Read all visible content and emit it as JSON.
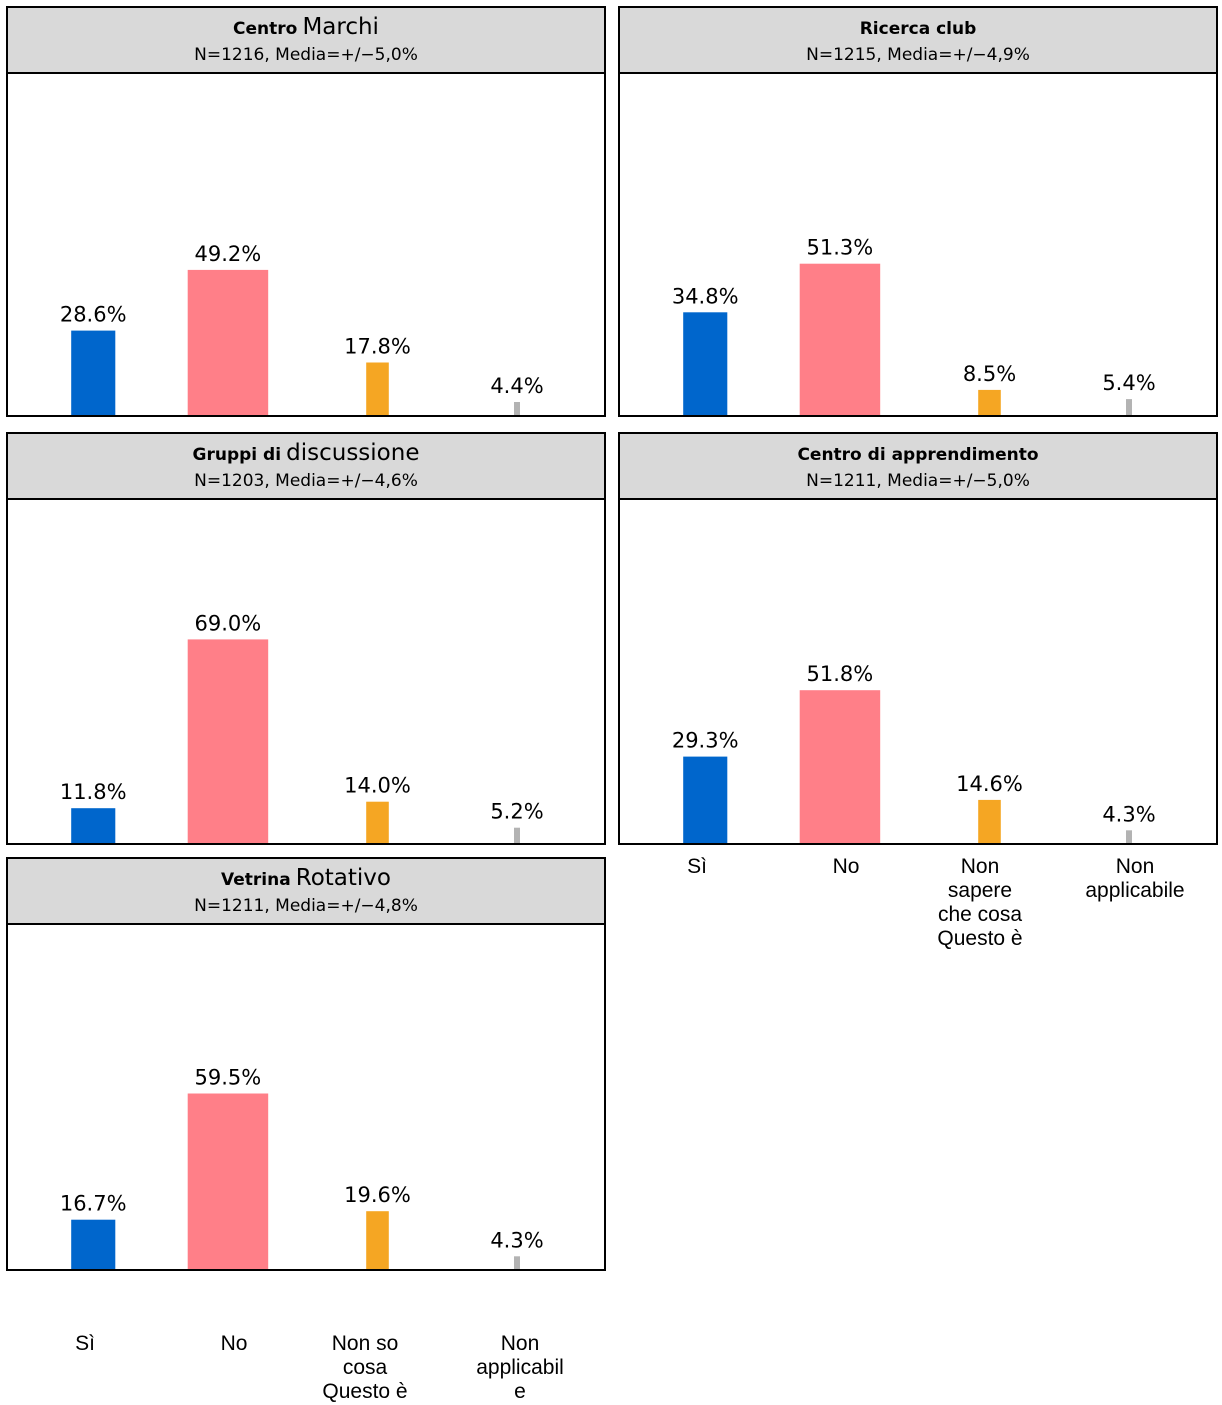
{
  "chart_data": [
    {
      "type": "bar",
      "title_bold": "Centro",
      "title_rest": "Marchi",
      "subtitle": "N=1216, Media=+/−5,0%",
      "categories": [
        "Sì",
        "No",
        "Non so cosa Questo è",
        "Non applicabile"
      ],
      "values": [
        28.6,
        49.2,
        17.8,
        4.4
      ],
      "data_labels": [
        "28.6%",
        "49.2%",
        "17.8%",
        "4.4%"
      ],
      "colors": [
        "#0066cc",
        "#ff7f88",
        "#f5a623",
        "#b3b3b3"
      ],
      "ylim": [
        0,
        100
      ]
    },
    {
      "type": "bar",
      "title_bold": "Ricerca club",
      "title_rest": "",
      "subtitle": "N=1215, Media=+/−4,9%",
      "categories": [
        "Sì",
        "No",
        "Non sapere che cosa Questo è",
        "Non applicabile"
      ],
      "values": [
        34.8,
        51.3,
        8.5,
        5.4
      ],
      "data_labels": [
        "34.8%",
        "51.3%",
        "8.5%",
        "5.4%"
      ],
      "colors": [
        "#0066cc",
        "#ff7f88",
        "#f5a623",
        "#b3b3b3"
      ],
      "ylim": [
        0,
        100
      ]
    },
    {
      "type": "bar",
      "title_bold": "Gruppi di",
      "title_rest": "discussione",
      "subtitle": "N=1203, Media=+/−4,6%",
      "categories": [
        "Sì",
        "No",
        "Non so cosa Questo è",
        "Non applicabile"
      ],
      "values": [
        11.8,
        69.0,
        14.0,
        5.2
      ],
      "data_labels": [
        "11.8%",
        "69.0%",
        "14.0%",
        "5.2%"
      ],
      "colors": [
        "#0066cc",
        "#ff7f88",
        "#f5a623",
        "#b3b3b3"
      ],
      "ylim": [
        0,
        100
      ]
    },
    {
      "type": "bar",
      "title_bold": "Centro di apprendimento",
      "title_rest": "",
      "subtitle": "N=1211, Media=+/−5,0%",
      "categories": [
        "Sì",
        "No",
        "Non sapere che cosa Questo è",
        "Non applicabile"
      ],
      "values": [
        29.3,
        51.8,
        14.6,
        4.3
      ],
      "data_labels": [
        "29.3%",
        "51.8%",
        "14.6%",
        "4.3%"
      ],
      "colors": [
        "#0066cc",
        "#ff7f88",
        "#f5a623",
        "#b3b3b3"
      ],
      "ylim": [
        0,
        100
      ]
    },
    {
      "type": "bar",
      "title_bold": "Vetrina",
      "title_rest": "Rotativo",
      "subtitle": "N=1211, Media=+/−4,8%",
      "categories": [
        "Sì",
        "No",
        "Non so cosa Questo è",
        "Non applicabile"
      ],
      "values": [
        16.7,
        59.5,
        19.6,
        4.3
      ],
      "data_labels": [
        "16.7%",
        "59.5%",
        "19.6%",
        "4.3%"
      ],
      "colors": [
        "#0066cc",
        "#ff7f88",
        "#f5a623",
        "#b3b3b3"
      ],
      "ylim": [
        0,
        100
      ]
    }
  ],
  "x_axis_right": {
    "labels": [
      "Sì",
      "No",
      "Non\nsapere\nche cosa\nQuesto è",
      "Non\napplicabile"
    ]
  },
  "x_axis_left": {
    "labels": [
      "Sì",
      "No",
      "Non so\ncosa\nQuesto è",
      "Non\napplicabil\ne"
    ]
  }
}
